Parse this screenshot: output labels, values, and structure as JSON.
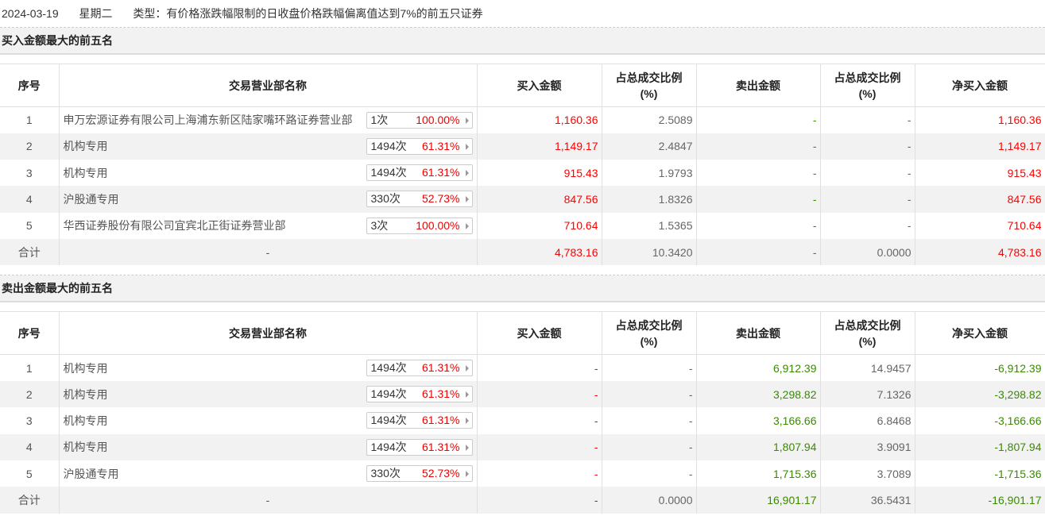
{
  "header": {
    "date": "2024-03-19",
    "weekday": "星期二",
    "type": "类型：有价格涨跌幅限制的日收盘价格跌幅偏离值达到7%的前五只证券"
  },
  "columns": [
    "序号",
    "交易营业部名称",
    "买入金额",
    "占总成交比例(%)",
    "卖出金额",
    "占总成交比例(%)",
    "净买入金额"
  ],
  "buy_section": {
    "title": "买入金额最大的前五名",
    "rows": [
      {
        "no": "1",
        "name": "申万宏源证券有限公司上海浦东新区陆家嘴环路证券营业部",
        "times": "1次",
        "pct": "100.00%",
        "buy": "1,160.36",
        "buy_ratio": "2.5089",
        "sell": "-",
        "sell_ratio": "-",
        "net": "1,160.36"
      },
      {
        "no": "2",
        "name": "机构专用",
        "times": "1494次",
        "pct": "61.31%",
        "buy": "1,149.17",
        "buy_ratio": "2.4847",
        "sell": "-",
        "sell_ratio": "-",
        "net": "1,149.17"
      },
      {
        "no": "3",
        "name": "机构专用",
        "times": "1494次",
        "pct": "61.31%",
        "buy": "915.43",
        "buy_ratio": "1.9793",
        "sell": "-",
        "sell_ratio": "-",
        "net": "915.43"
      },
      {
        "no": "4",
        "name": "沪股通专用",
        "times": "330次",
        "pct": "52.73%",
        "buy": "847.56",
        "buy_ratio": "1.8326",
        "sell": "-",
        "sell_ratio": "-",
        "net": "847.56"
      },
      {
        "no": "5",
        "name": "华西证券股份有限公司宜宾北正街证券营业部",
        "times": "3次",
        "pct": "100.00%",
        "buy": "710.64",
        "buy_ratio": "1.5365",
        "sell": "-",
        "sell_ratio": "-",
        "net": "710.64"
      }
    ],
    "total": {
      "no": "合计",
      "name": "-",
      "buy": "4,783.16",
      "buy_ratio": "10.3420",
      "sell": "-",
      "sell_ratio": "0.0000",
      "net": "4,783.16"
    }
  },
  "sell_section": {
    "title": "卖出金额最大的前五名",
    "rows": [
      {
        "no": "1",
        "name": "机构专用",
        "times": "1494次",
        "pct": "61.31%",
        "buy": "-",
        "buy_ratio": "-",
        "sell": "6,912.39",
        "sell_ratio": "14.9457",
        "net": "-6,912.39"
      },
      {
        "no": "2",
        "name": "机构专用",
        "times": "1494次",
        "pct": "61.31%",
        "buy": "-",
        "buy_ratio": "-",
        "sell": "3,298.82",
        "sell_ratio": "7.1326",
        "net": "-3,298.82"
      },
      {
        "no": "3",
        "name": "机构专用",
        "times": "1494次",
        "pct": "61.31%",
        "buy": "-",
        "buy_ratio": "-",
        "sell": "3,166.66",
        "sell_ratio": "6.8468",
        "net": "-3,166.66"
      },
      {
        "no": "4",
        "name": "机构专用",
        "times": "1494次",
        "pct": "61.31%",
        "buy": "-",
        "buy_ratio": "-",
        "sell": "1,807.94",
        "sell_ratio": "3.9091",
        "net": "-1,807.94"
      },
      {
        "no": "5",
        "name": "沪股通专用",
        "times": "330次",
        "pct": "52.73%",
        "buy": "-",
        "buy_ratio": "-",
        "sell": "1,715.36",
        "sell_ratio": "3.7089",
        "net": "-1,715.36"
      }
    ],
    "total": {
      "no": "合计",
      "name": "-",
      "buy": "-",
      "buy_ratio": "0.0000",
      "sell": "16,901.17",
      "sell_ratio": "36.5431",
      "net": "-16,901.17"
    }
  },
  "colors": {
    "up": "#ff0000",
    "down": "#3a8a00"
  }
}
